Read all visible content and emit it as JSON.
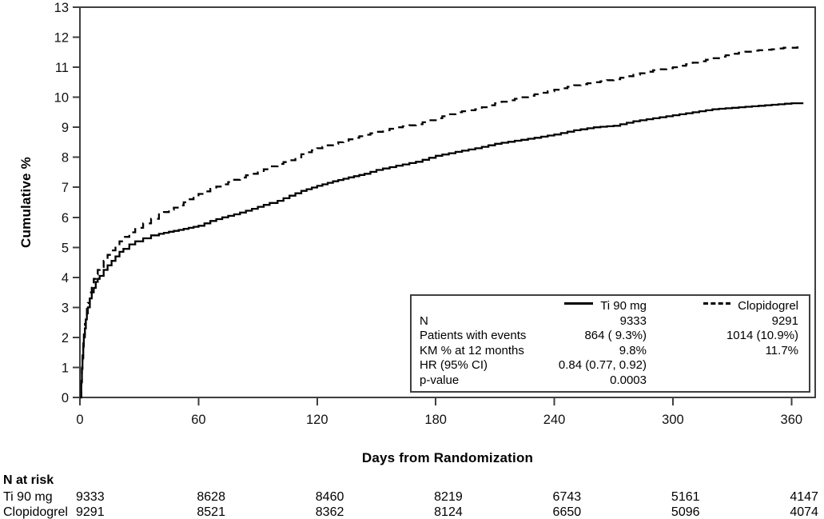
{
  "chart_data": {
    "type": "line",
    "title": "",
    "xlabel": "Days from Randomization",
    "ylabel": "Cumulative %",
    "xlim": [
      0,
      372
    ],
    "ylim": [
      0,
      13
    ],
    "x_ticks": [
      0,
      60,
      120,
      180,
      240,
      300,
      360
    ],
    "y_ticks": [
      0,
      1,
      2,
      3,
      4,
      5,
      6,
      7,
      8,
      9,
      10,
      11,
      12,
      13
    ],
    "grid": "off",
    "legend_position": "inside-bottom-right",
    "series": [
      {
        "name": "Ti 90 mg",
        "style": "solid",
        "color": "#000000",
        "points": [
          [
            0,
            0
          ],
          [
            0.7,
            0.5
          ],
          [
            1,
            0.95
          ],
          [
            1.3,
            1.3
          ],
          [
            1.7,
            1.7
          ],
          [
            2,
            2.0
          ],
          [
            2.5,
            2.3
          ],
          [
            3,
            2.6
          ],
          [
            3.5,
            2.8
          ],
          [
            4,
            3.0
          ],
          [
            5,
            3.3
          ],
          [
            6,
            3.5
          ],
          [
            7,
            3.65
          ],
          [
            8,
            3.85
          ],
          [
            9,
            3.95
          ],
          [
            10,
            4.05
          ],
          [
            12,
            4.25
          ],
          [
            14,
            4.4
          ],
          [
            16,
            4.55
          ],
          [
            18,
            4.7
          ],
          [
            20,
            4.85
          ],
          [
            22,
            4.95
          ],
          [
            25,
            5.1
          ],
          [
            28,
            5.2
          ],
          [
            32,
            5.3
          ],
          [
            36,
            5.4
          ],
          [
            40,
            5.45
          ],
          [
            45,
            5.52
          ],
          [
            50,
            5.58
          ],
          [
            55,
            5.65
          ],
          [
            60,
            5.72
          ],
          [
            66,
            5.88
          ],
          [
            72,
            6.0
          ],
          [
            78,
            6.1
          ],
          [
            84,
            6.22
          ],
          [
            90,
            6.35
          ],
          [
            96,
            6.48
          ],
          [
            100,
            6.55
          ],
          [
            106,
            6.72
          ],
          [
            112,
            6.88
          ],
          [
            120,
            7.05
          ],
          [
            128,
            7.2
          ],
          [
            136,
            7.33
          ],
          [
            144,
            7.45
          ],
          [
            150,
            7.58
          ],
          [
            160,
            7.72
          ],
          [
            170,
            7.85
          ],
          [
            180,
            8.05
          ],
          [
            190,
            8.18
          ],
          [
            200,
            8.3
          ],
          [
            210,
            8.45
          ],
          [
            220,
            8.55
          ],
          [
            230,
            8.65
          ],
          [
            240,
            8.76
          ],
          [
            250,
            8.9
          ],
          [
            260,
            9.0
          ],
          [
            270,
            9.05
          ],
          [
            280,
            9.2
          ],
          [
            290,
            9.3
          ],
          [
            300,
            9.4
          ],
          [
            310,
            9.5
          ],
          [
            320,
            9.6
          ],
          [
            330,
            9.65
          ],
          [
            340,
            9.7
          ],
          [
            350,
            9.75
          ],
          [
            360,
            9.8
          ],
          [
            366,
            9.8
          ]
        ]
      },
      {
        "name": "Clopidogrel",
        "style": "dashed",
        "color": "#000000",
        "points": [
          [
            0,
            0
          ],
          [
            0.7,
            0.55
          ],
          [
            1,
            1.0
          ],
          [
            1.3,
            1.4
          ],
          [
            1.7,
            1.8
          ],
          [
            2,
            2.1
          ],
          [
            2.5,
            2.45
          ],
          [
            3,
            2.75
          ],
          [
            3.5,
            2.95
          ],
          [
            4,
            3.15
          ],
          [
            5,
            3.5
          ],
          [
            6,
            3.75
          ],
          [
            7,
            3.95
          ],
          [
            8,
            4.1
          ],
          [
            9,
            4.25
          ],
          [
            10,
            4.35
          ],
          [
            12,
            4.55
          ],
          [
            14,
            4.75
          ],
          [
            16,
            4.9
          ],
          [
            18,
            5.05
          ],
          [
            20,
            5.2
          ],
          [
            22,
            5.35
          ],
          [
            25,
            5.5
          ],
          [
            28,
            5.65
          ],
          [
            32,
            5.8
          ],
          [
            36,
            5.95
          ],
          [
            40,
            6.1
          ],
          [
            45,
            6.25
          ],
          [
            50,
            6.4
          ],
          [
            55,
            6.6
          ],
          [
            60,
            6.78
          ],
          [
            66,
            6.95
          ],
          [
            72,
            7.1
          ],
          [
            78,
            7.25
          ],
          [
            84,
            7.4
          ],
          [
            90,
            7.5
          ],
          [
            96,
            7.7
          ],
          [
            100,
            7.78
          ],
          [
            106,
            7.9
          ],
          [
            112,
            8.1
          ],
          [
            120,
            8.3
          ],
          [
            128,
            8.45
          ],
          [
            136,
            8.6
          ],
          [
            144,
            8.75
          ],
          [
            150,
            8.85
          ],
          [
            160,
            9.0
          ],
          [
            170,
            9.1
          ],
          [
            180,
            9.3
          ],
          [
            190,
            9.5
          ],
          [
            200,
            9.6
          ],
          [
            210,
            9.8
          ],
          [
            220,
            9.95
          ],
          [
            230,
            10.1
          ],
          [
            240,
            10.25
          ],
          [
            250,
            10.4
          ],
          [
            260,
            10.5
          ],
          [
            270,
            10.6
          ],
          [
            280,
            10.75
          ],
          [
            290,
            10.9
          ],
          [
            300,
            11.0
          ],
          [
            310,
            11.15
          ],
          [
            320,
            11.3
          ],
          [
            330,
            11.45
          ],
          [
            340,
            11.55
          ],
          [
            350,
            11.6
          ],
          [
            356,
            11.65
          ],
          [
            360,
            11.65
          ],
          [
            366,
            11.68
          ]
        ]
      }
    ]
  },
  "legend": {
    "series": [
      {
        "label": "Ti 90 mg",
        "style": "solid"
      },
      {
        "label": "Clopidogrel",
        "style": "dashed"
      }
    ],
    "rows": [
      {
        "label": "N",
        "col1": "9333",
        "col2": "9291"
      },
      {
        "label": "Patients with events",
        "col1": "864 ( 9.3%)",
        "col2": "1014 (10.9%)"
      },
      {
        "label": "KM % at 12 months",
        "col1": "9.8%",
        "col2": "11.7%"
      },
      {
        "label": "HR (95% CI)",
        "col1": "0.84 (0.77, 0.92)",
        "col2": ""
      },
      {
        "label": "p-value",
        "col1": "0.0003",
        "col2": ""
      }
    ]
  },
  "risk_table": {
    "title": "N at risk",
    "rows": [
      {
        "label": "Ti 90 mg",
        "values": [
          "9333",
          "8628",
          "8460",
          "8219",
          "6743",
          "5161",
          "4147"
        ]
      },
      {
        "label": "Clopidogrel",
        "values": [
          "9291",
          "8521",
          "8362",
          "8124",
          "6650",
          "5096",
          "4074"
        ]
      }
    ]
  },
  "colors": {
    "curve": "#000000",
    "frame": "#3f3f3f",
    "text": "#111111"
  }
}
